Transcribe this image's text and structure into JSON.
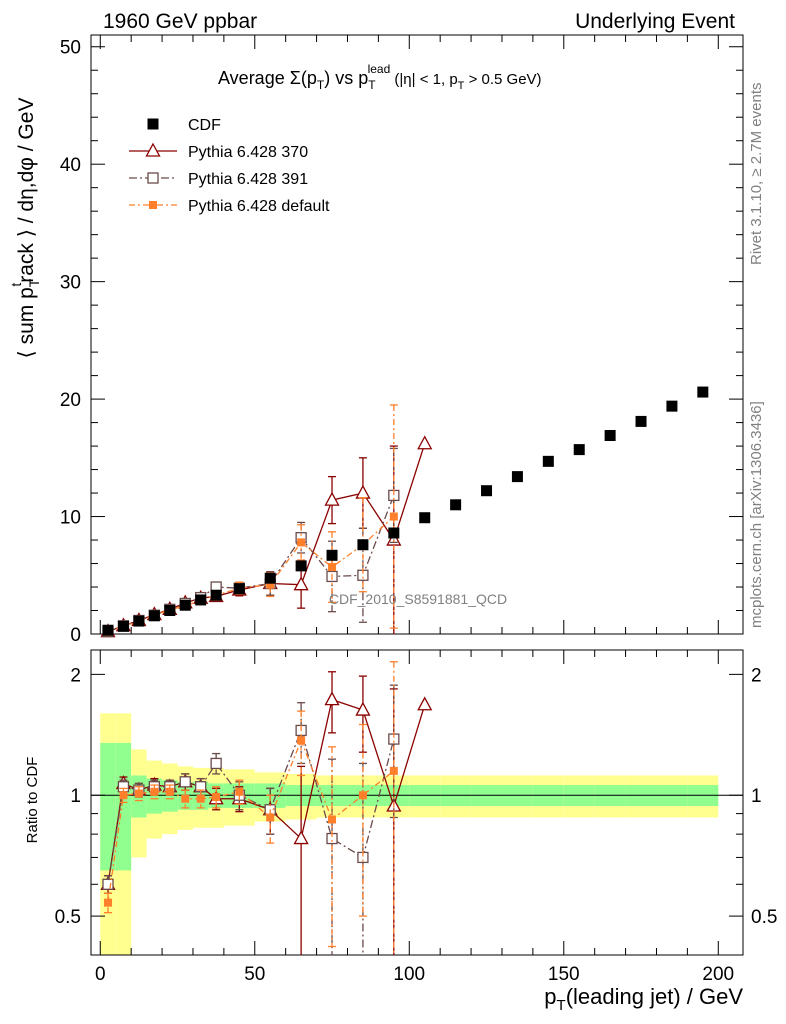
{
  "header": {
    "left": "1960 GeV ppbar",
    "right": "Underlying Event"
  },
  "side": {
    "rivet": "Rivet 3.1.10, ≥ 2.7M events",
    "mcplots": "mcplots.cern.ch [arXiv:1306.3436]"
  },
  "watermark": "CDF_2010_S8591881_QCD",
  "chart_data": {
    "type": "scatter",
    "title": "Average Σ(p_T) vs p_T^lead (|η| < 1, p_T > 0.5 GeV)",
    "ylabel": "⟨ sum p_T^track ⟩ / dη,dφ / GeV",
    "xlabel": "p_T(leading jet) / GeV",
    "ratio_ylabel": "Ratio to CDF",
    "xlim": [
      -3,
      208
    ],
    "ylim": [
      0,
      51
    ],
    "ratio_ylim": [
      0.4,
      2.3
    ],
    "x_ticks": [
      "0",
      "50",
      "100",
      "150",
      "200"
    ],
    "y_ticks": [
      "0",
      "10",
      "20",
      "30",
      "40",
      "50"
    ],
    "ratio_ticks": [
      "0.5",
      "1",
      "2"
    ],
    "legend_position": "top-left",
    "series": [
      {
        "name": "CDF",
        "color": "#000000",
        "marker": "filled-square",
        "x": [
          2.5,
          7.5,
          12.5,
          17.5,
          22.5,
          27.5,
          32.5,
          37.5,
          45,
          55,
          65,
          75,
          85,
          95,
          105,
          115,
          125,
          135,
          145,
          155,
          165,
          175,
          185,
          195
        ],
        "y": [
          0.32,
          0.65,
          1.1,
          1.55,
          2.0,
          2.45,
          2.9,
          3.3,
          3.85,
          4.75,
          5.8,
          6.7,
          7.6,
          8.6,
          9.9,
          11.0,
          12.2,
          13.4,
          14.7,
          15.7,
          16.9,
          18.1,
          19.4,
          20.6
        ]
      },
      {
        "name": "Pythia 6.428 370",
        "color": "#8b0000",
        "marker": "open-triangle",
        "x": [
          2.5,
          7.5,
          12.5,
          17.5,
          22.5,
          27.5,
          32.5,
          37.5,
          45,
          55,
          65,
          75,
          85,
          95,
          105
        ],
        "y": [
          0.2,
          0.7,
          1.15,
          1.65,
          2.1,
          2.65,
          3.05,
          3.2,
          3.75,
          4.3,
          4.2,
          11.4,
          12.0,
          8.0,
          16.2
        ],
        "err": [
          0.05,
          0.1,
          0.1,
          0.15,
          0.2,
          0.25,
          0.3,
          0.4,
          0.5,
          1.0,
          2.0,
          2.0,
          3.0,
          8.0,
          0
        ]
      },
      {
        "name": "Pythia 6.428 391",
        "color": "#6b4a4a",
        "marker": "open-square",
        "x": [
          2.5,
          7.5,
          12.5,
          17.5,
          22.5,
          27.5,
          32.5,
          37.5,
          45,
          55,
          65,
          75,
          85,
          95
        ],
        "y": [
          0.2,
          0.7,
          1.15,
          1.6,
          2.1,
          2.6,
          3.1,
          4.0,
          3.9,
          4.3,
          8.2,
          4.9,
          5.0,
          11.8
        ],
        "err": [
          0.05,
          0.1,
          0.1,
          0.15,
          0.2,
          0.25,
          0.3,
          0.4,
          0.5,
          1.0,
          1.3,
          3.0,
          4.0,
          4.0
        ]
      },
      {
        "name": "Pythia 6.428 default",
        "color": "#ff7f2a",
        "marker": "filled-small-square",
        "x": [
          2.5,
          7.5,
          12.5,
          17.5,
          22.5,
          27.5,
          32.5,
          37.5,
          45,
          55,
          65,
          75,
          85,
          95
        ],
        "y": [
          0.17,
          0.65,
          1.1,
          1.6,
          2.05,
          2.4,
          2.85,
          3.3,
          3.9,
          4.2,
          7.8,
          5.7,
          7.6,
          10.0
        ],
        "err": [
          0.05,
          0.1,
          0.1,
          0.15,
          0.2,
          0.25,
          0.3,
          0.4,
          0.5,
          1.0,
          1.5,
          3.0,
          4.0,
          9.5
        ]
      }
    ],
    "ratio_series": [
      {
        "name": "Pythia 6.428 370",
        "color": "#8b0000",
        "marker": "open-triangle",
        "x": [
          2.5,
          7.5,
          12.5,
          17.5,
          22.5,
          27.5,
          32.5,
          37.5,
          45,
          55,
          65,
          75,
          85,
          95,
          105
        ],
        "y": [
          0.6,
          1.07,
          1.03,
          1.06,
          1.05,
          1.08,
          1.05,
          0.98,
          0.98,
          0.92,
          0.78,
          1.73,
          1.63,
          0.94,
          1.68
        ],
        "err": [
          0.03,
          0.04,
          0.04,
          0.04,
          0.04,
          0.05,
          0.05,
          0.06,
          0.07,
          0.12,
          0.4,
          0.3,
          0.35,
          0.9,
          0
        ]
      },
      {
        "name": "Pythia 6.428 391",
        "color": "#6b4a4a",
        "marker": "open-square",
        "x": [
          2.5,
          7.5,
          12.5,
          17.5,
          22.5,
          27.5,
          32.5,
          37.5,
          45,
          55,
          65,
          75,
          85,
          95
        ],
        "y": [
          0.6,
          1.05,
          1.03,
          1.05,
          1.05,
          1.08,
          1.05,
          1.2,
          1.0,
          0.92,
          1.45,
          0.78,
          0.7,
          1.38
        ],
        "err": [
          0.03,
          0.04,
          0.04,
          0.04,
          0.04,
          0.05,
          0.05,
          0.07,
          0.08,
          0.12,
          0.25,
          0.45,
          0.5,
          0.5
        ]
      },
      {
        "name": "Pythia 6.428 default",
        "color": "#ff7f2a",
        "marker": "filled-small-square",
        "x": [
          2.5,
          7.5,
          12.5,
          17.5,
          22.5,
          27.5,
          32.5,
          37.5,
          45,
          55,
          65,
          75,
          85,
          95
        ],
        "y": [
          0.54,
          1.0,
          1.01,
          1.02,
          1.02,
          0.98,
          0.98,
          0.99,
          1.02,
          0.88,
          1.37,
          0.87,
          1.0,
          1.15
        ],
        "err": [
          0.03,
          0.04,
          0.04,
          0.04,
          0.04,
          0.05,
          0.05,
          0.06,
          0.07,
          0.12,
          0.25,
          0.45,
          0.5,
          1.0
        ]
      }
    ]
  }
}
